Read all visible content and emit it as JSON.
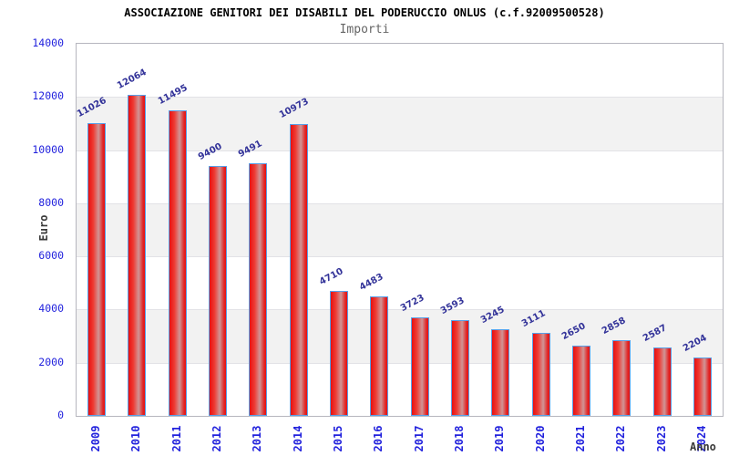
{
  "chart_data": {
    "type": "bar",
    "title": "ASSOCIAZIONE GENITORI DEI DISABILI DEL PODERUCCIO ONLUS (c.f.92009500528)",
    "subtitle": "Importi",
    "xlabel": "Anno",
    "ylabel": "Euro",
    "categories": [
      "2009",
      "2010",
      "2011",
      "2012",
      "2013",
      "2014",
      "2015",
      "2016",
      "2017",
      "2018",
      "2019",
      "2020",
      "2021",
      "2022",
      "2023",
      "2024"
    ],
    "values": [
      11026,
      12064,
      11495,
      9400,
      9491,
      10973,
      4710,
      4483,
      3723,
      3593,
      3245,
      3111,
      2650,
      2858,
      2587,
      2204
    ],
    "ylim": [
      0,
      14000
    ],
    "yticks": [
      0,
      2000,
      4000,
      6000,
      8000,
      10000,
      12000,
      14000
    ],
    "legend_position": "none",
    "grid": "alternating-horizontal-bands",
    "colors": {
      "bar_red": "#e81010",
      "bar_highlight": "#d09596",
      "bar_border": "#58a0e8",
      "axis_tick_label": "#2222dd",
      "value_label": "#333399",
      "band_gray": "#f2f2f2",
      "plot_border": "#b6b6be",
      "title": "#000000",
      "subtitle": "#666666",
      "axis_title": "#3a3a3a"
    }
  }
}
